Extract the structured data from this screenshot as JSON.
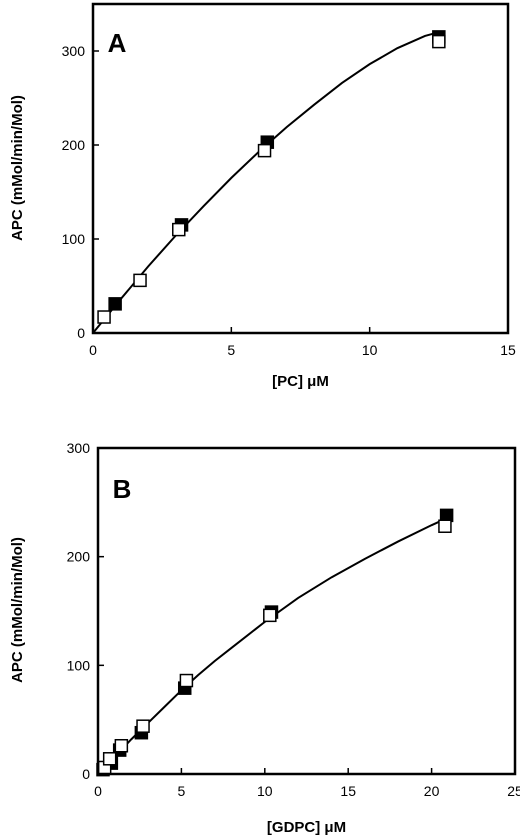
{
  "chart_data": [
    {
      "type": "scatter",
      "panel_label": "A",
      "xlabel": "[PC] μM",
      "ylabel": "APC (mMol/min/Mol)",
      "xlim": [
        0,
        15
      ],
      "ylim": [
        0,
        350
      ],
      "x_ticks": [
        "0",
        "5",
        "10",
        "15"
      ],
      "y_ticks": [
        "0",
        "100",
        "200",
        "300"
      ],
      "x_tick_values": [
        0,
        5,
        10,
        15
      ],
      "y_tick_values": [
        0,
        100,
        200,
        300
      ],
      "grid": false,
      "legend": "none",
      "series": [
        {
          "marker": "filled-square",
          "x": [
            0.8,
            3.2,
            6.3,
            12.5
          ],
          "y": [
            31,
            115,
            203,
            315
          ]
        },
        {
          "marker": "open-square",
          "x": [
            0.4,
            1.7,
            3.1,
            6.2,
            12.5
          ],
          "y": [
            17,
            56,
            110,
            194,
            310
          ]
        }
      ],
      "fit": {
        "x": [
          0,
          1,
          2,
          3,
          4,
          5,
          6,
          7,
          8,
          9,
          10,
          11,
          12,
          12.5
        ],
        "y": [
          0,
          36,
          71,
          104,
          135,
          165,
          193,
          219,
          243,
          266,
          286,
          303,
          316,
          320
        ]
      }
    },
    {
      "type": "scatter",
      "panel_label": "B",
      "xlabel": "[GDPC] μM",
      "ylabel": "APC (mMol/min/Mol)",
      "xlim": [
        0,
        25
      ],
      "ylim": [
        0,
        300
      ],
      "x_ticks": [
        "0",
        "5",
        "10",
        "15",
        "20",
        "25"
      ],
      "y_ticks": [
        "0",
        "100",
        "200",
        "300"
      ],
      "x_tick_values": [
        0,
        5,
        10,
        15,
        20,
        25
      ],
      "y_tick_values": [
        0,
        100,
        200,
        300
      ],
      "grid": false,
      "legend": "none",
      "series": [
        {
          "marker": "filled-square",
          "x": [
            0.3,
            0.8,
            1.3,
            2.6,
            5.2,
            10.4,
            20.9
          ],
          "y": [
            4,
            10,
            22,
            38,
            79,
            149,
            238
          ]
        },
        {
          "marker": "open-square",
          "x": [
            0.4,
            0.7,
            1.4,
            2.7,
            5.3,
            10.3,
            20.8
          ],
          "y": [
            6,
            14,
            26,
            44,
            86,
            146,
            228
          ]
        }
      ],
      "fit": {
        "x": [
          0,
          1,
          2,
          3,
          4,
          5,
          6,
          7,
          8,
          10,
          12,
          14,
          16,
          18,
          20,
          21
        ],
        "y": [
          0,
          16,
          32,
          47,
          62,
          77,
          91,
          104,
          116,
          140,
          162,
          181,
          198,
          214,
          229,
          236
        ]
      }
    }
  ]
}
